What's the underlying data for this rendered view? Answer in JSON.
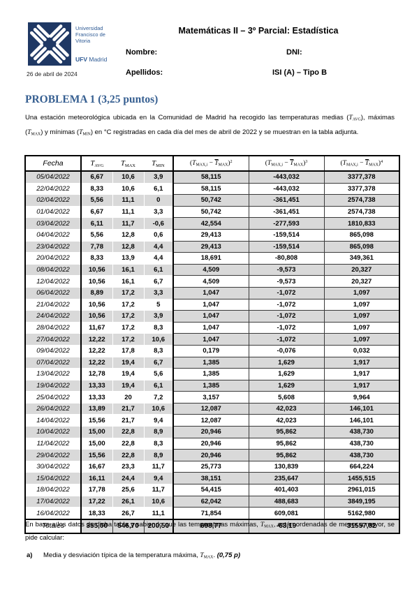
{
  "header": {
    "logo": {
      "org_lines": [
        "Universidad",
        "Francisco de",
        "Vitoria"
      ],
      "brand_bold": "UFV",
      "brand_rest": " Madrid",
      "navy": "#1f3864",
      "blue": "#2f5b95"
    },
    "date": "26 de abril de 2024",
    "title": "Matemáticas II – 3º Parcial: Estadística",
    "nombre_label": "Nombre:",
    "dni_label": "DNI:",
    "apellidos_label": "Apellidos:",
    "group_label": "ISI (A) – Tipo B"
  },
  "problem": {
    "heading": "PROBLEMA 1 (3,25 puntos)",
    "heading_color": "#365f91",
    "intro_segments": [
      {
        "t": "Una estación meteorológica ubicada en la Comunidad de Madrid ha recogido las temperaturas medias ("
      },
      {
        "t": "T",
        "s": "v"
      },
      {
        "t": "AVG",
        "s": "s"
      },
      {
        "t": "), máximas ("
      },
      {
        "t": "T",
        "s": "v"
      },
      {
        "t": "MAX",
        "s": "s"
      },
      {
        "t": ") y mínimas ("
      },
      {
        "t": "T",
        "s": "v"
      },
      {
        "t": "MIN",
        "s": "s"
      },
      {
        "t": ") en °C registradas en cada día del mes de abril de 2022 y se muestran en la tabla adjunta."
      }
    ]
  },
  "table": {
    "stripe_color": "#d9d9d9",
    "headers": {
      "fecha": "Fecha",
      "t_avg": [
        {
          "t": "T",
          "s": "v"
        },
        {
          "t": "AVG",
          "s": "s"
        }
      ],
      "t_max": [
        {
          "t": "T",
          "s": "v"
        },
        {
          "t": "MAX",
          "s": "s"
        }
      ],
      "t_min": [
        {
          "t": "T",
          "s": "v"
        },
        {
          "t": "MIN",
          "s": "s"
        }
      ],
      "m2": [
        {
          "t": "("
        },
        {
          "t": "T",
          "s": "v"
        },
        {
          "t": "MAX,i",
          "s": "s"
        },
        {
          "t": " − "
        },
        {
          "t": "T",
          "s": "vo"
        },
        {
          "t": "MAX",
          "s": "s"
        },
        {
          "t": ")"
        },
        {
          "t": "2",
          "s": "sup"
        }
      ],
      "m3": [
        {
          "t": "("
        },
        {
          "t": "T",
          "s": "v"
        },
        {
          "t": "MAX,i",
          "s": "s"
        },
        {
          "t": " − "
        },
        {
          "t": "T",
          "s": "vo"
        },
        {
          "t": "MAX",
          "s": "s"
        },
        {
          "t": ")"
        },
        {
          "t": "3",
          "s": "sup"
        }
      ],
      "m4": [
        {
          "t": "("
        },
        {
          "t": "T",
          "s": "v"
        },
        {
          "t": "MAX,i",
          "s": "s"
        },
        {
          "t": " − "
        },
        {
          "t": "T",
          "s": "vo"
        },
        {
          "t": "MAX",
          "s": "s"
        },
        {
          "t": ")"
        },
        {
          "t": "4",
          "s": "sup"
        }
      ]
    },
    "rows": [
      [
        "05/04/2022",
        "6,67",
        "10,6",
        "3,9",
        "58,115",
        "-443,032",
        "3377,378"
      ],
      [
        "22/04/2022",
        "8,33",
        "10,6",
        "6,1",
        "58,115",
        "-443,032",
        "3377,378"
      ],
      [
        "02/04/2022",
        "5,56",
        "11,1",
        "0",
        "50,742",
        "-361,451",
        "2574,738"
      ],
      [
        "01/04/2022",
        "6,67",
        "11,1",
        "3,3",
        "50,742",
        "-361,451",
        "2574,738"
      ],
      [
        "03/04/2022",
        "6,11",
        "11,7",
        "-0,6",
        "42,554",
        "-277,593",
        "1810,833"
      ],
      [
        "04/04/2022",
        "5,56",
        "12,8",
        "0,6",
        "29,413",
        "-159,514",
        "865,098"
      ],
      [
        "23/04/2022",
        "7,78",
        "12,8",
        "4,4",
        "29,413",
        "-159,514",
        "865,098"
      ],
      [
        "20/04/2022",
        "8,33",
        "13,9",
        "4,4",
        "18,691",
        "-80,808",
        "349,361"
      ],
      [
        "08/04/2022",
        "10,56",
        "16,1",
        "6,1",
        "4,509",
        "-9,573",
        "20,327"
      ],
      [
        "12/04/2022",
        "10,56",
        "16,1",
        "6,7",
        "4,509",
        "-9,573",
        "20,327"
      ],
      [
        "06/04/2022",
        "8,89",
        "17,2",
        "3,3",
        "1,047",
        "-1,072",
        "1,097"
      ],
      [
        "21/04/2022",
        "10,56",
        "17,2",
        "5",
        "1,047",
        "-1,072",
        "1,097"
      ],
      [
        "24/04/2022",
        "10,56",
        "17,2",
        "3,9",
        "1,047",
        "-1,072",
        "1,097"
      ],
      [
        "28/04/2022",
        "11,67",
        "17,2",
        "8,3",
        "1,047",
        "-1,072",
        "1,097"
      ],
      [
        "27/04/2022",
        "12,22",
        "17,2",
        "10,6",
        "1,047",
        "-1,072",
        "1,097"
      ],
      [
        "09/04/2022",
        "12,22",
        "17,8",
        "8,3",
        "0,179",
        "-0,076",
        "0,032"
      ],
      [
        "07/04/2022",
        "12,22",
        "19,4",
        "6,7",
        "1,385",
        "1,629",
        "1,917"
      ],
      [
        "13/04/2022",
        "12,78",
        "19,4",
        "5,6",
        "1,385",
        "1,629",
        "1,917"
      ],
      [
        "19/04/2022",
        "13,33",
        "19,4",
        "6,1",
        "1,385",
        "1,629",
        "1,917"
      ],
      [
        "25/04/2022",
        "13,33",
        "20",
        "7,2",
        "3,157",
        "5,608",
        "9,964"
      ],
      [
        "26/04/2022",
        "13,89",
        "21,7",
        "10,6",
        "12,087",
        "42,023",
        "146,101"
      ],
      [
        "14/04/2022",
        "15,56",
        "21,7",
        "9,4",
        "12,087",
        "42,023",
        "146,101"
      ],
      [
        "10/04/2022",
        "15,00",
        "22,8",
        "8,9",
        "20,946",
        "95,862",
        "438,730"
      ],
      [
        "11/04/2022",
        "15,00",
        "22,8",
        "8,3",
        "20,946",
        "95,862",
        "438,730"
      ],
      [
        "29/04/2022",
        "15,56",
        "22,8",
        "8,9",
        "20,946",
        "95,862",
        "438,730"
      ],
      [
        "30/04/2022",
        "16,67",
        "23,3",
        "11,7",
        "25,773",
        "130,839",
        "664,224"
      ],
      [
        "15/04/2022",
        "16,11",
        "24,4",
        "9,4",
        "38,151",
        "235,647",
        "1455,515"
      ],
      [
        "18/04/2022",
        "17,78",
        "25,6",
        "11,7",
        "54,415",
        "401,403",
        "2961,015"
      ],
      [
        "17/04/2022",
        "17,22",
        "26,1",
        "10,6",
        "62,042",
        "488,683",
        "3849,195"
      ],
      [
        "16/04/2022",
        "18,33",
        "26,7",
        "11,1",
        "71,854",
        "609,081",
        "5162,980"
      ]
    ],
    "totals": [
      "Totales",
      "355,00",
      "546,70",
      "200,50",
      "698,77",
      "-63,19",
      "31557,82"
    ]
  },
  "footer": {
    "para_segments": [
      {
        "t": "En base a los datos de dicha tabla y sabiendo que las temperaturas máximas, "
      },
      {
        "t": "T",
        "s": "v"
      },
      {
        "t": "MAX",
        "s": "s"
      },
      {
        "t": ", están ordenadas de menor a mayor, se pide calcular:"
      }
    ],
    "item_a_label": "a)",
    "item_a_segments": [
      {
        "t": "Media y desviación típica de la temperatura máxima, "
      },
      {
        "t": "T",
        "s": "v"
      },
      {
        "t": "MAX",
        "s": "s"
      },
      {
        "t": ". "
      },
      {
        "t": "(0,75 p)",
        "s": "bi"
      }
    ]
  }
}
